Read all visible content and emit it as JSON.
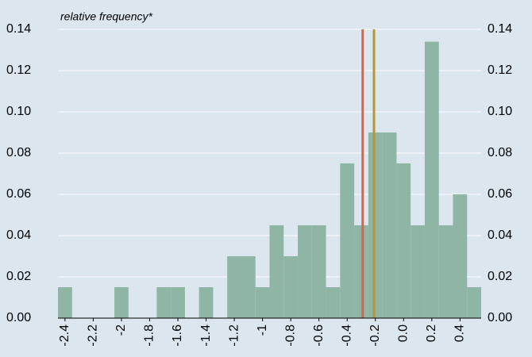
{
  "chart_data": {
    "type": "histogram",
    "title": "relative frequency*",
    "bins": [
      -2.45,
      -2.35,
      -2.25,
      -2.15,
      -2.05,
      -1.95,
      -1.85,
      -1.75,
      -1.65,
      -1.55,
      -1.45,
      -1.35,
      -1.25,
      -1.15,
      -1.05,
      -0.95,
      -0.85,
      -0.75,
      -0.65,
      -0.55,
      -0.45,
      -0.35,
      -0.25,
      -0.15,
      -0.05,
      0.05,
      0.15,
      0.25,
      0.35,
      0.45,
      0.55
    ],
    "values": [
      0.015,
      0,
      0,
      0,
      0.015,
      0,
      0,
      0.015,
      0.015,
      0,
      0.015,
      0,
      0.03,
      0.03,
      0.015,
      0.045,
      0.03,
      0.045,
      0.045,
      0.015,
      0.075,
      0.045,
      0.09,
      0.09,
      0.075,
      0.045,
      0.134,
      0.045,
      0.06,
      0.015
    ],
    "color": "#8fb5a5",
    "vlines": [
      {
        "value": -0.29,
        "color": "#d9634c"
      },
      {
        "value": -0.21,
        "color": "#b8973a"
      }
    ],
    "xlim": [
      -2.45,
      0.55
    ],
    "xticks": [
      -2.4,
      -2.2,
      -2.0,
      -1.8,
      -1.6,
      -1.4,
      -1.2,
      -1.0,
      -0.8,
      -0.6,
      -0.4,
      -0.2,
      {
        "value": 0,
        "label": "0.0"
      },
      0.2,
      0.4
    ],
    "ylim": [
      0,
      0.14
    ],
    "yticks": [
      {
        "value": 0,
        "label": "0.00"
      },
      {
        "value": 0.02,
        "label": "0.02"
      },
      {
        "value": 0.04,
        "label": "0.04"
      },
      {
        "value": 0.06,
        "label": "0.06"
      },
      {
        "value": 0.08,
        "label": "0.08"
      },
      {
        "value": 0.1,
        "label": "0.10"
      },
      {
        "value": 0.12,
        "label": "0.12"
      },
      {
        "value": 0.14,
        "label": "0.14"
      }
    ],
    "y2lim": [
      0,
      0.14
    ],
    "y2ticks": [
      {
        "value": 0,
        "label": "0.00"
      },
      {
        "value": 0.02,
        "label": "0.02"
      },
      {
        "value": 0.04,
        "label": "0.04"
      },
      {
        "value": 0.06,
        "label": "0.06"
      },
      {
        "value": 0.08,
        "label": "0.08"
      },
      {
        "value": 0.1,
        "label": "0.10"
      },
      {
        "value": 0.12,
        "label": "0.12"
      },
      {
        "value": 0.14,
        "label": "0.14"
      }
    ],
    "grid": true
  }
}
